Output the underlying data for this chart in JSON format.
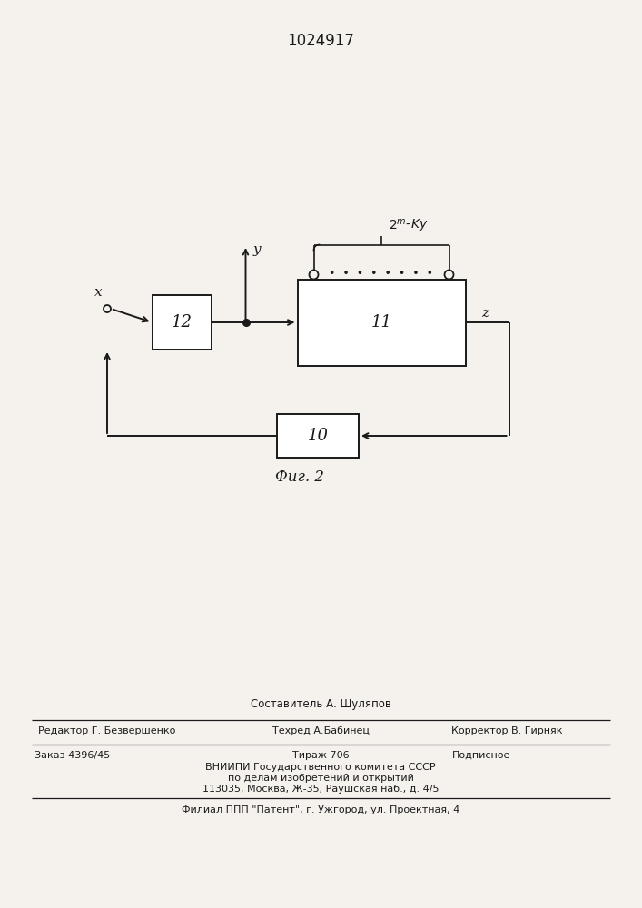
{
  "patent_number": "1024917",
  "fig_label": "Фиг. 2",
  "background_color": "#f5f2ee",
  "text_color": "#1a1a1a",
  "block_11_label": "11",
  "block_12_label": "12",
  "block_10_label": "10",
  "label_x": "x",
  "label_y": "y",
  "label_z": "z",
  "footer_line1": "Составитель А. Шуляпов",
  "footer_line2_left": "Редактор Г. Безвершенко",
  "footer_line2_mid": "Техред А.Бабинец",
  "footer_line2_right": "Корректор В. Гирняк",
  "footer_line3_left": "Заказ 4396/45",
  "footer_line3_mid": "Тираж 706",
  "footer_line3_right": "Подписное",
  "footer_line4": "ВНИИПИ Государственного комитета СССР",
  "footer_line5": "по делам изобретений и открытий",
  "footer_line6": "113035, Москва, Ж-35, Раушская наб., д. 4/5",
  "footer_line7": "Филиал ППП \"Патент\", г. Ужгород, ул. Проектная, 4"
}
